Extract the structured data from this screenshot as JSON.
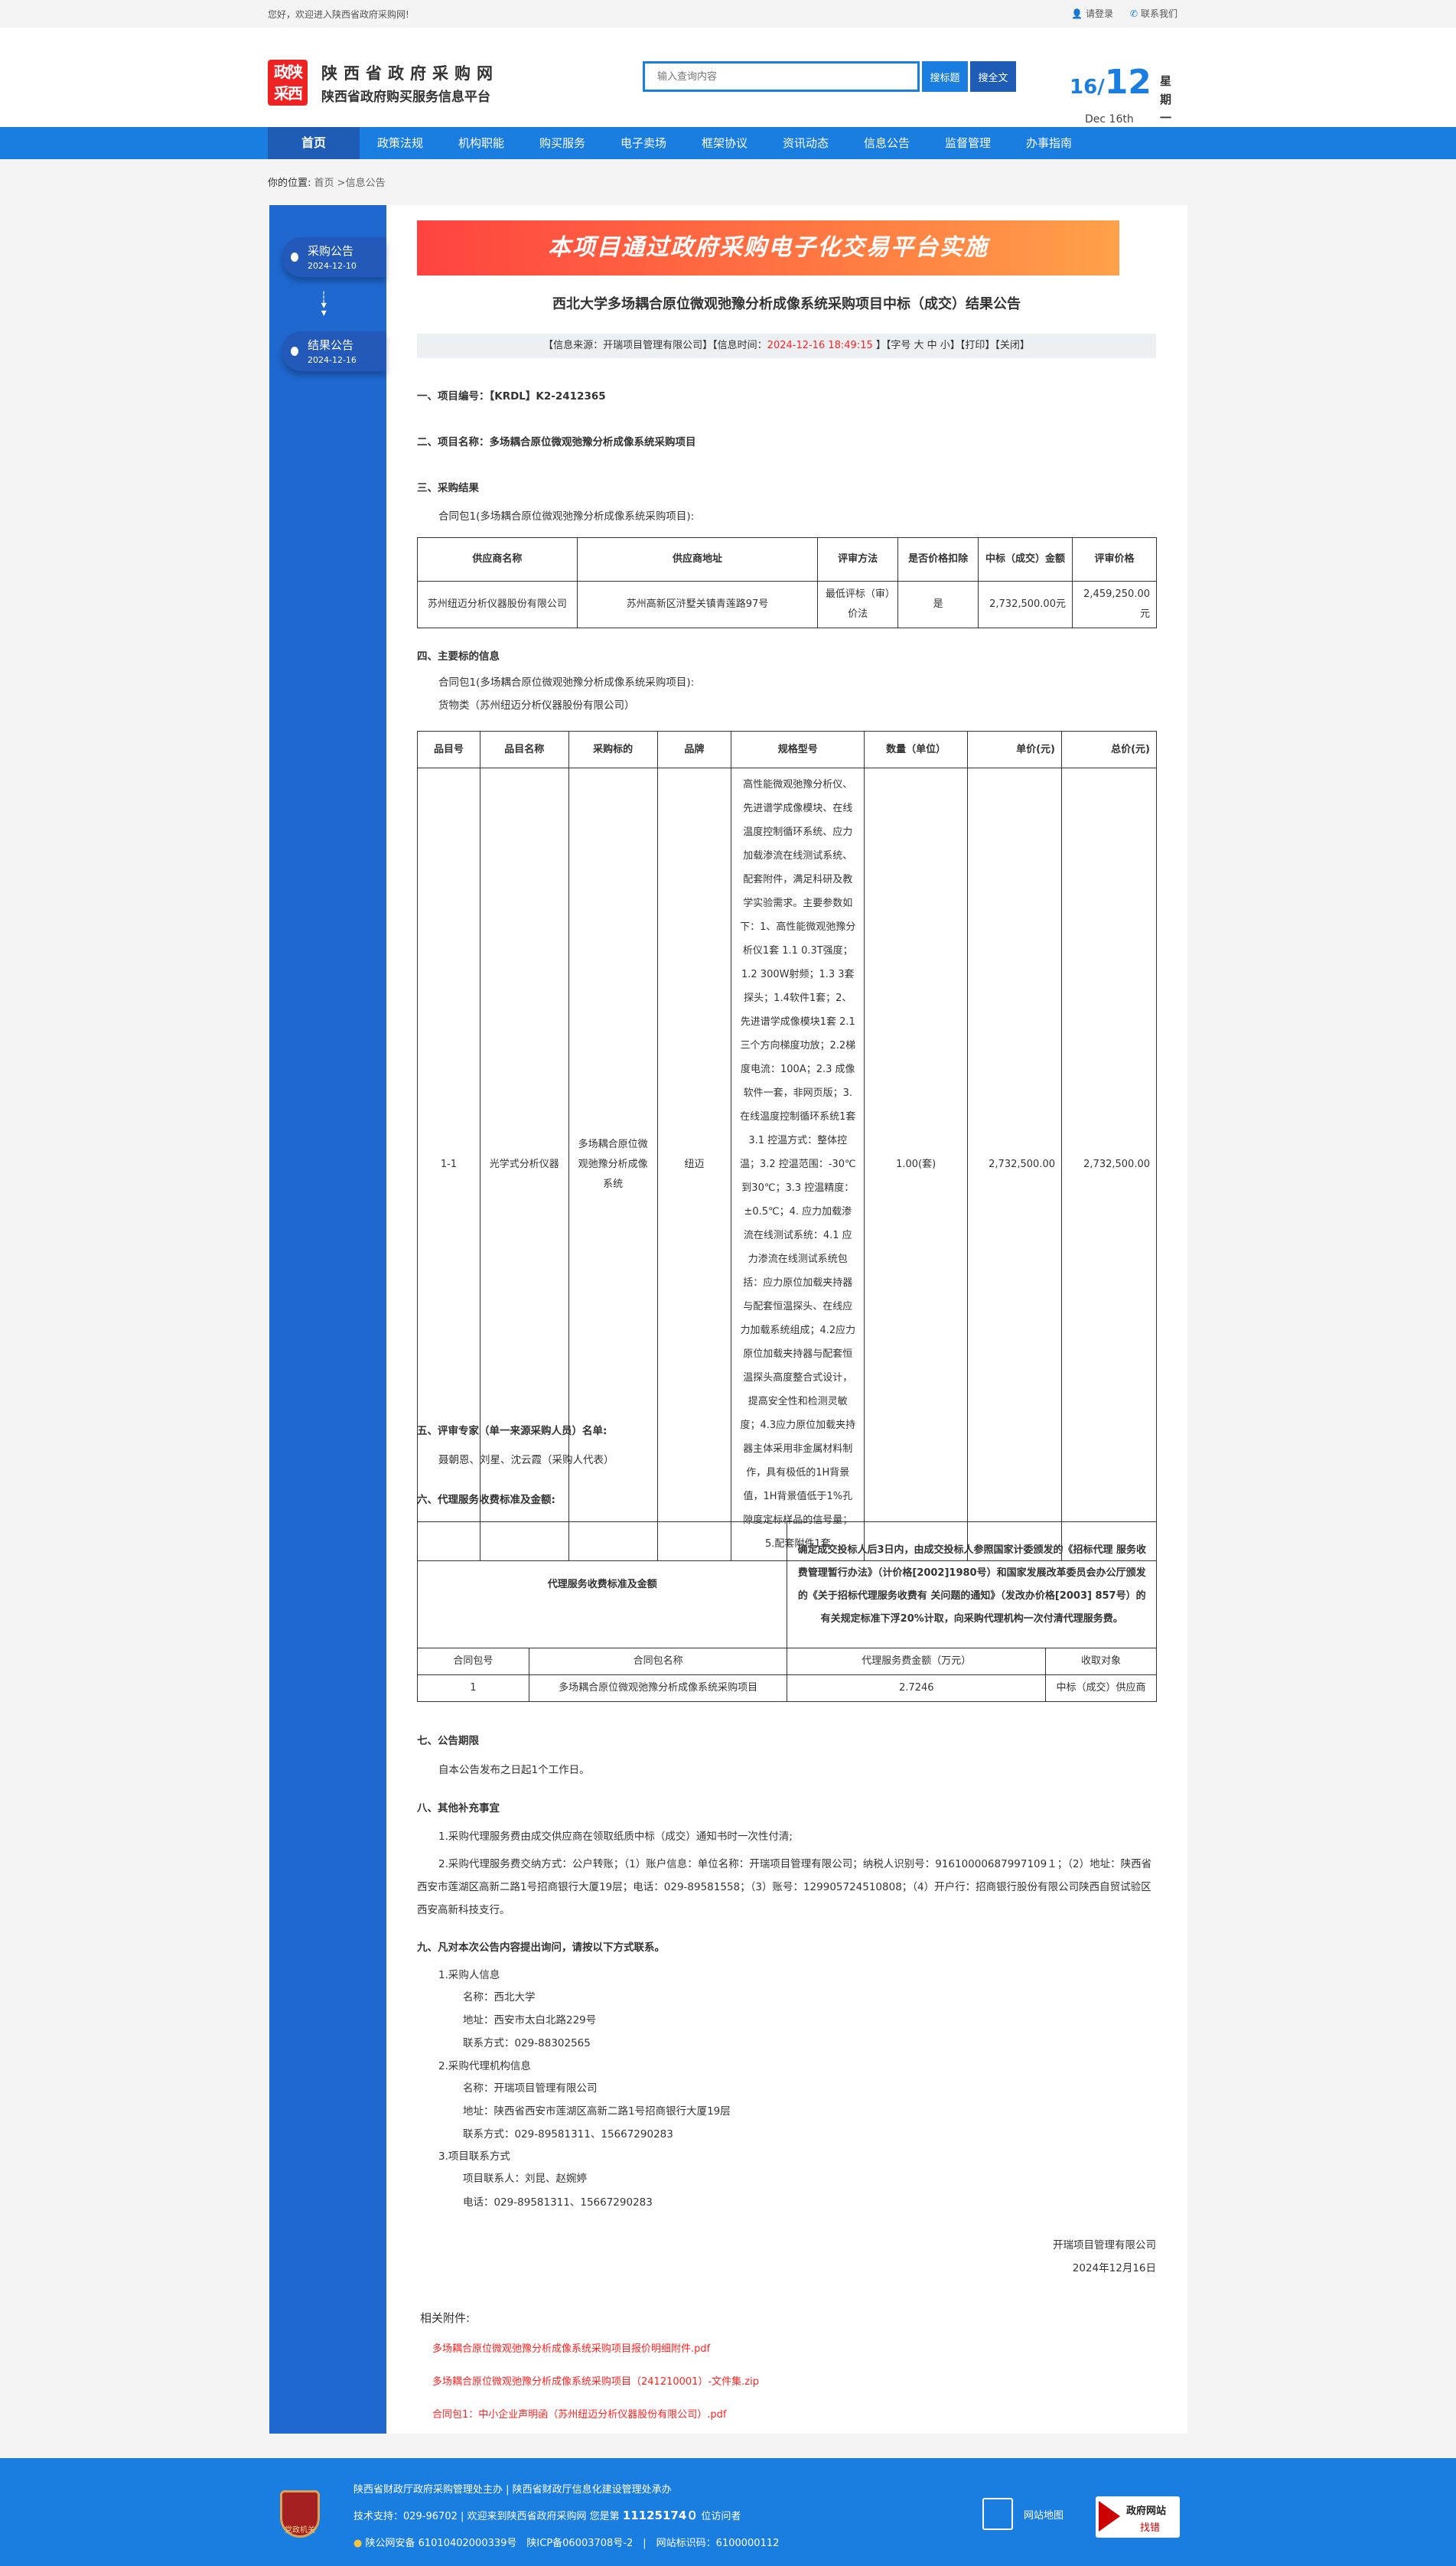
{
  "topbar": {
    "welcome": "您好，欢迎进入陕西省政府采购网!",
    "login": "请登录",
    "contact": "联系我们"
  },
  "header": {
    "logo_text": "陕西政采",
    "site_name": "陕西省政府采购网",
    "site_sub": "陕西省政府购买服务信息平台",
    "search_placeholder": "输入查询内容",
    "btn_title": "搜标题",
    "btn_full": "搜全文",
    "date_day": "16",
    "date_month": "12",
    "date_en": "Dec 16th",
    "weekday": "星期一"
  },
  "nav": [
    "首页",
    "政策法规",
    "机构职能",
    "购买服务",
    "电子卖场",
    "框架协议",
    "资讯动态",
    "信息公告",
    "监督管理",
    "办事指南"
  ],
  "breadcrumb": {
    "label": "你的位置:",
    "home": "首页",
    "sep": " >",
    "current": "信息公告"
  },
  "side": [
    {
      "title": "采购公告",
      "date": "2024-12-10"
    },
    {
      "title": "结果公告",
      "date": "2024-12-16"
    }
  ],
  "article": {
    "banner": "本项目通过政府采购电子化交易平台实施",
    "title": "西北大学多场耦合原位微观弛豫分析成像系统采购项目中标（成交）结果公告",
    "info": {
      "source": "【信息来源：开瑞项目管理有限公司】",
      "time_label": "【信息时间：",
      "time": "2024-12-16 18:49:15",
      "time_end": "】",
      "font": "【字号 大 中 小】",
      "print": "【打印】",
      "close": "【关闭】"
    },
    "s1": "一、项目编号：【KRDL】K2-2412365",
    "s2": "二、项目名称：多场耦合原位微观弛豫分析成像系统采购项目",
    "s3": "三、采购结果",
    "s3_pkg": "合同包1(多场耦合原位微观弛豫分析成像系统采购项目):",
    "t1": {
      "headers": [
        "供应商名称",
        "供应商地址",
        "评审方法",
        "是否价格扣除",
        "中标（成交）金额",
        "评审价格"
      ],
      "row": [
        "苏州纽迈分析仪器股份有限公司",
        "苏州高新区浒墅关镇青莲路97号",
        "最低评标（审）价法",
        "是",
        "2,732,500.00元",
        "2,459,250.00元"
      ]
    },
    "s4": "四、主要标的信息",
    "s4_pkg": "合同包1(多场耦合原位微观弛豫分析成像系统采购项目):",
    "s4_cat": "货物类（苏州纽迈分析仪器股份有限公司）",
    "t2": {
      "headers": [
        "品目号",
        "品目名称",
        "采购标的",
        "品牌",
        "规格型号",
        "数量（单位）",
        "单价(元)",
        "总价(元)"
      ],
      "row": [
        "1-1",
        "光学式分析仪器",
        "多场耦合原位微观弛豫分析成像系统",
        "纽迈",
        "高性能微观弛豫分析仪、先进谱学成像模块、在线温度控制循环系统、应力加载渗流在线测试系统、配套附件，满足科研及教学实验需求。主要参数如下：1、高性能微观弛豫分析仪1套 1.1 0.3T强度；1.2 300W射频；1.3 3套探头；1.4软件1套；2、先进谱学成像模块1套 2.1三个方向梯度功放；2.2梯度电流：100A；2.3 成像软件一套，非网页版；3. 在线温度控制循环系统1套 3.1 控温方式：整体控温；3.2 控温范围：-30℃到30℃；3.3 控温精度：±0.5℃；4. 应力加载渗流在线测试系统：4.1 应力渗流在线测试系统包括：应力原位加载夹持器与配套恒温探头、在线应力加载系统组成；4.2应力原位加载夹持器与配套恒温探头高度整合式设计，提高安全性和检测灵敏度；4.3应力原位加载夹持器主体采用非金属材料制作，具有极低的1H背景值，1H背景值低于1%孔隙度定标样品的信号量；5.配套附件1套",
        "1.00(套)",
        "2,732,500.00",
        "2,732,500.00"
      ]
    },
    "s5": "五、评审专家（单一来源采购人员）名单:",
    "s5_names": "聂朝恩、刘星、沈云霞（采购人代表）",
    "s6": "六、代理服务收费标准及金额:",
    "t3": {
      "label": "代理服务收费标准及金额",
      "desc": "确定成交投标人后3日内，由成交投标人参照国家计委颁发的《招标代理 服务收费管理暂行办法》（计价格[2002]1980号）和国家发展改革委员会办公厅颁发的《关于招标代理服务收费有 关问题的通知》（发改办价格[2003] 857号）的有关规定标准下浮20%计取，向采购代理机构一次付清代理服务费。",
      "headers": [
        "合同包号",
        "合同包名称",
        "代理服务费金额（万元）",
        "收取对象"
      ],
      "row": [
        "1",
        "多场耦合原位微观弛豫分析成像系统采购项目",
        "2.7246",
        "中标（成交）供应商"
      ]
    },
    "s7": "七、公告期限",
    "s7_text": "自本公告发布之日起1个工作日。",
    "s8": "八、其他补充事宜",
    "s8_1": "1.采购代理服务费由成交供应商在领取纸质中标（成交）通知书时一次性付清;",
    "s8_2": "2.采购代理服务费交纳方式：公户转账；（1）账户信息：单位名称：开瑞项目管理有限公司；纳税人识别号：91610000687997109１；（2）地址：陕西省西安市莲湖区高新二路1号招商银行大厦19层；电话：029-89581558；（3）账号：129905724510808；（4）开户行：招商银行股份有限公司陕西自贸试验区西安高新科技支行。",
    "s9": "九、凡对本次公告内容提出询问，请按以下方式联系。",
    "c1": "1.采购人信息",
    "c1_name": "名称：西北大学",
    "c1_addr": "地址：西安市太白北路229号",
    "c1_tel": "联系方式：029-88302565",
    "c2": "2.采购代理机构信息",
    "c2_name": "名称：开瑞项目管理有限公司",
    "c2_addr": "地址：陕西省西安市莲湖区高新二路1号招商银行大厦19层",
    "c2_tel": "联系方式：029-89581311、15667290283",
    "c3": "3.项目联系方式",
    "c3_person": "项目联系人：刘昆、赵婉婷",
    "c3_tel": "电话：029-89581311、15667290283",
    "sign_org": "开瑞项目管理有限公司",
    "sign_date": "2024年12月16日",
    "attach_label": "相关附件:",
    "attachments": [
      "多场耦合原位微观弛豫分析成像系统采购项目报价明细附件.pdf",
      "多场耦合原位微观弛豫分析成像系统采购项目（241210001）-文件集.zip",
      "合同包1：中小企业声明函（苏州纽迈分析仪器股份有限公司）.pdf"
    ]
  },
  "footer": {
    "line1": "陕西省财政厅政府采购管理处主办 | 陕西省财政厅信息化建设管理处承办",
    "line2_a": "技术支持：029-96702 | 欢迎来到陕西省政府采购网 您是第 ",
    "visits": "11125174０",
    "line2_b": " 位访问者",
    "line3": "陕公网安备 61010402000339号　陕ICP备06003708号-2　|　网站标识码：6100000112",
    "badge": "党政机关",
    "sitemap": "网站地图",
    "gov_a": "政府网站",
    "gov_b": "找错"
  },
  "colors": {
    "primary": "#1a7de0",
    "nav_active": "#1f5cb5",
    "side": "#1f68d0",
    "link_red": "#ff2222"
  }
}
